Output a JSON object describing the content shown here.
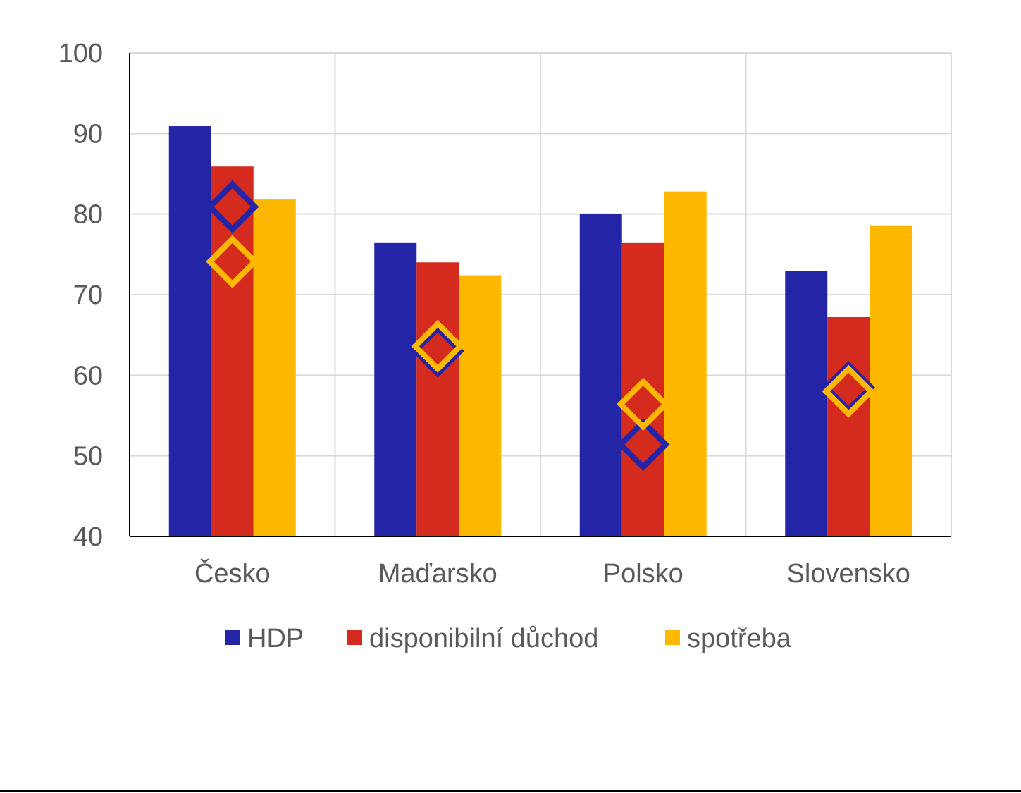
{
  "chart_data": {
    "type": "bar",
    "title": "",
    "xlabel": "",
    "ylabel": "",
    "ylim": [
      40,
      100
    ],
    "yticks": [
      40,
      50,
      60,
      70,
      80,
      90,
      100
    ],
    "grid": true,
    "legend_position": "bottom",
    "categories": [
      "Česko",
      "Maďarsko",
      "Polsko",
      "Slovensko"
    ],
    "series": [
      {
        "name": "HDP",
        "color": "#2424A6",
        "values": [
          90.9,
          76.4,
          80.0,
          72.9
        ]
      },
      {
        "name": "disponibilní důchod",
        "color": "#D42B1E",
        "values": [
          85.9,
          74.0,
          76.4,
          67.2
        ]
      },
      {
        "name": "spotřeba",
        "color": "#FFB800",
        "values": [
          81.8,
          72.4,
          82.8,
          78.6
        ]
      }
    ],
    "markers": [
      {
        "series": "HDP",
        "shape": "diamond",
        "color": "#2424A6",
        "values": [
          80.9,
          63.0,
          51.4,
          58.5
        ]
      },
      {
        "series": "spotřeba",
        "shape": "diamond",
        "color": "#FFB800",
        "values": [
          74.1,
          63.6,
          56.4,
          58.0
        ]
      }
    ]
  }
}
